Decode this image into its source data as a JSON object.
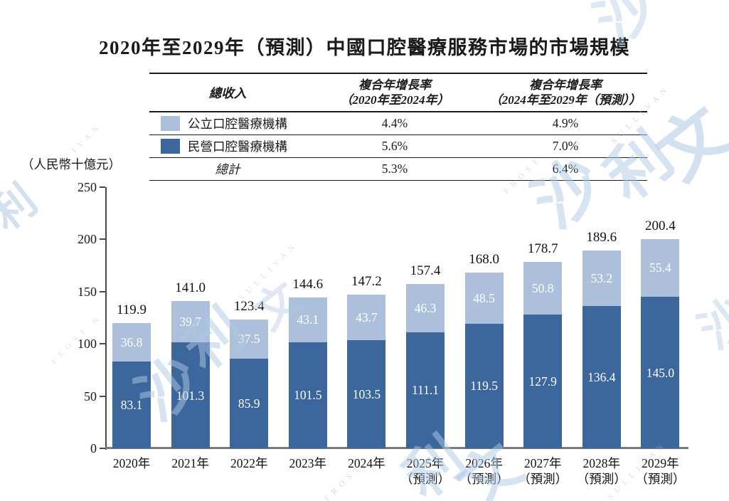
{
  "title": "2020年至2029年（預測）中國口腔醫療服務市場的市場規模",
  "colors": {
    "private_bar": "#3c679d",
    "public_bar": "#adc0db",
    "axis": "#4a4a4a",
    "baseline": "#7a7a7a",
    "text": "#1a1a1a",
    "watermark": "#aec8e4"
  },
  "table": {
    "header": {
      "col1": "總收入",
      "col2_line1": "複合年增長率",
      "col2_line2": "（2020年至2024年）",
      "col3_line1": "複合年增長率",
      "col3_line2": "（2024年至2029年（預測））"
    },
    "rows": [
      {
        "label": "公立口腔醫療機構",
        "cagr_2020_2024": "4.4%",
        "cagr_2024_2029": "4.9%"
      },
      {
        "label": "民營口腔醫療機構",
        "cagr_2020_2024": "5.6%",
        "cagr_2024_2029": "7.0%"
      },
      {
        "label": "總計",
        "cagr_2020_2024": "5.3%",
        "cagr_2024_2029": "6.4%"
      }
    ]
  },
  "chart_data": {
    "type": "bar",
    "subtype": "stacked",
    "title": "2020年至2029年（預測）中國口腔醫療服務市場的市場規模",
    "unit_label": "（人民幣十億元）",
    "categories": [
      "2020年",
      "2021年",
      "2022年",
      "2023年",
      "2024年",
      "2025年",
      "2026年",
      "2027年",
      "2028年",
      "2029年"
    ],
    "forecast_flags": [
      false,
      false,
      false,
      false,
      false,
      true,
      true,
      true,
      true,
      true
    ],
    "forecast_suffix": "（預測）",
    "series": [
      {
        "name": "民營口腔醫療機構",
        "color": "#3c679d",
        "values": [
          "83.1",
          "101.3",
          "85.9",
          "101.5",
          "103.5",
          "111.1",
          "119.5",
          "127.9",
          "136.4",
          "145.0"
        ]
      },
      {
        "name": "公立口腔醫療機構",
        "color": "#adc0db",
        "values": [
          "36.8",
          "39.7",
          "37.5",
          "43.1",
          "43.7",
          "46.3",
          "48.5",
          "50.8",
          "53.2",
          "55.4"
        ]
      }
    ],
    "totals": [
      "119.9",
      "141.0",
      "123.4",
      "144.6",
      "147.2",
      "157.4",
      "168.0",
      "178.7",
      "189.6",
      "200.4"
    ],
    "ylim": [
      0,
      250
    ],
    "yticks": [
      0,
      50,
      100,
      150,
      200,
      250
    ],
    "grid": false,
    "legend_position": "table"
  },
  "watermark": {
    "brand_zh": "沙利文",
    "brand_en": "FROST & SULLIVAN"
  }
}
